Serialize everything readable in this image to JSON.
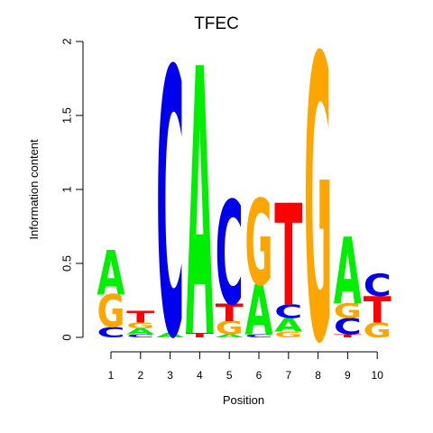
{
  "chart_data": {
    "type": "sequence-logo",
    "title": "TFEC",
    "xlabel": "Position",
    "ylabel": "Information content",
    "ylim": [
      0,
      2
    ],
    "y_ticks": [
      "0",
      "0.5",
      "1",
      "1.5",
      "2"
    ],
    "x_ticks": [
      "1",
      "2",
      "3",
      "4",
      "5",
      "6",
      "7",
      "8",
      "9",
      "10"
    ],
    "colors": {
      "A": "#00ee00",
      "C": "#0000ee",
      "G": "#ffa500",
      "T": "#ff0000"
    },
    "positions": [
      {
        "position": "1",
        "letters": [
          {
            "base": "C",
            "height": 0.07
          },
          {
            "base": "G",
            "height": 0.22
          },
          {
            "base": "A",
            "height": 0.3
          }
        ]
      },
      {
        "position": "2",
        "letters": [
          {
            "base": "C",
            "height": 0.02
          },
          {
            "base": "A",
            "height": 0.04
          },
          {
            "base": "G",
            "height": 0.04
          },
          {
            "base": "T",
            "height": 0.08
          }
        ]
      },
      {
        "position": "3",
        "letters": [
          {
            "base": "A",
            "height": 0.03
          },
          {
            "base": "C",
            "height": 1.8
          }
        ]
      },
      {
        "position": "4",
        "letters": [
          {
            "base": "T",
            "height": 0.03
          },
          {
            "base": "A",
            "height": 1.81
          }
        ]
      },
      {
        "position": "5",
        "letters": [
          {
            "base": "A",
            "height": 0.02
          },
          {
            "base": "G",
            "height": 0.09
          },
          {
            "base": "T",
            "height": 0.12
          },
          {
            "base": "C",
            "height": 0.7
          }
        ]
      },
      {
        "position": "6",
        "letters": [
          {
            "base": "C",
            "height": 0.02
          },
          {
            "base": "A",
            "height": 0.34
          },
          {
            "base": "G",
            "height": 0.58
          }
        ]
      },
      {
        "position": "7",
        "letters": [
          {
            "base": "G",
            "height": 0.04
          },
          {
            "base": "A",
            "height": 0.09
          },
          {
            "base": "C",
            "height": 0.09
          },
          {
            "base": "T",
            "height": 0.69
          }
        ]
      },
      {
        "position": "8",
        "letters": [
          {
            "base": "G",
            "height": 1.92
          }
        ]
      },
      {
        "position": "9",
        "letters": [
          {
            "base": "T",
            "height": 0.02
          },
          {
            "base": "C",
            "height": 0.11
          },
          {
            "base": "G",
            "height": 0.1
          },
          {
            "base": "A",
            "height": 0.45
          }
        ]
      },
      {
        "position": "10",
        "letters": [
          {
            "base": "G",
            "height": 0.1
          },
          {
            "base": "T",
            "height": 0.18
          },
          {
            "base": "C",
            "height": 0.15
          }
        ]
      }
    ]
  }
}
